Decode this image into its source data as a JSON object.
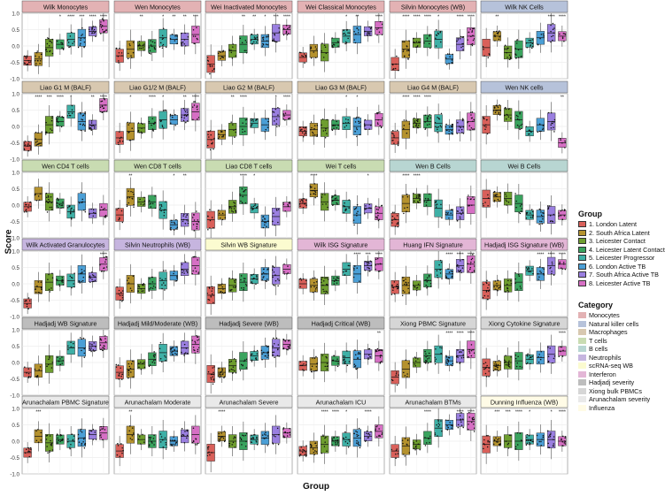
{
  "chart_data": {
    "type": "box",
    "xlabel": "Group",
    "ylabel": "Score",
    "ylim": [
      -1.0,
      1.0
    ],
    "yticks": [
      "-1.0",
      "-0.5",
      "0.0",
      "0.5",
      "1.0"
    ],
    "legend_group_title": "Group",
    "groups": [
      {
        "name": "1. London Latent",
        "color": "#d9605a"
      },
      {
        "name": "2. South Africa Latent",
        "color": "#b5922e"
      },
      {
        "name": "3. Leicester Contact",
        "color": "#6e9e2f"
      },
      {
        "name": "4. Leicester Latent Contact",
        "color": "#3aa35e"
      },
      {
        "name": "5. Leicester Progressor",
        "color": "#3fb0a6"
      },
      {
        "name": "6. London Active TB",
        "color": "#4b9fd6"
      },
      {
        "name": "7. South Africa Active TB",
        "color": "#9a7fe0"
      },
      {
        "name": "8. Leicester Active TB",
        "color": "#d66fc4"
      }
    ],
    "legend_category_title": "Category",
    "categories": [
      {
        "name": "Monocytes",
        "color": "#e3b2b4"
      },
      {
        "name": "Natural killer cells",
        "color": "#b6c2da"
      },
      {
        "name": "Macrophages",
        "color": "#d8c8b0"
      },
      {
        "name": "T cells",
        "color": "#c9dcb2"
      },
      {
        "name": "B cells",
        "color": "#b8d6d2"
      },
      {
        "name": "Neutrophils",
        "color": "#c6b5df"
      },
      {
        "name": "scRNA-seq WB",
        "color": "#fbfbd0"
      },
      {
        "name": "Interferon",
        "color": "#e3b6d6"
      },
      {
        "name": "Hadjadj severity",
        "color": "#bdbdbd"
      },
      {
        "name": "Xiong bulk PBMCs",
        "color": "#d6d6d6"
      },
      {
        "name": "Arunachalam severity",
        "color": "#e9e9e9"
      },
      {
        "name": "Influenza",
        "color": "#fffbe6"
      }
    ],
    "panels": [
      {
        "title": "Wilk Monocytes",
        "cat": 0,
        "medians": [
          -0.45,
          -0.4,
          -0.05,
          0.05,
          0.2,
          0.25,
          0.45,
          0.6
        ],
        "sig": [
          "",
          "",
          "",
          "*",
          "****",
          "***",
          "****",
          "****"
        ]
      },
      {
        "title": "Wen Monocytes",
        "cat": 0,
        "medians": [
          -0.3,
          -0.1,
          0.0,
          0.0,
          0.25,
          0.2,
          0.2,
          0.35
        ],
        "sig": [
          "",
          "",
          "**",
          "",
          "*",
          "**",
          "**",
          "***"
        ]
      },
      {
        "title": "Wei Inactivated Monocytes",
        "cat": 0,
        "medians": [
          -0.55,
          -0.3,
          -0.15,
          0.05,
          0.2,
          0.15,
          0.4,
          0.5
        ],
        "sig": [
          "",
          "",
          "",
          "**",
          "**",
          "*",
          "***",
          "****"
        ]
      },
      {
        "title": "Wei Classical Monocytes",
        "cat": 0,
        "medians": [
          -0.35,
          -0.15,
          -0.2,
          0.1,
          0.3,
          0.35,
          0.45,
          0.55
        ],
        "sig": [
          "",
          "",
          "",
          "",
          "*",
          "**",
          "",
          "****"
        ]
      },
      {
        "title": "Silvin Monocytes (WB)",
        "cat": 0,
        "medians": [
          -0.55,
          -0.1,
          0.1,
          0.15,
          0.2,
          -0.4,
          0.05,
          0.3
        ],
        "sig": [
          "",
          "****",
          "****",
          "****",
          "*",
          "",
          "****",
          "****"
        ]
      },
      {
        "title": "Wilk NK Cells",
        "cat": 1,
        "medians": [
          -0.05,
          0.3,
          -0.2,
          -0.1,
          0.1,
          0.25,
          0.4,
          0.3
        ],
        "sig": [
          "",
          "**",
          "",
          "",
          "",
          "",
          "****",
          "****"
        ]
      },
      {
        "title": "Liao G1 M (BALF)",
        "cat": 2,
        "medians": [
          -0.6,
          -0.4,
          0.05,
          0.15,
          0.45,
          0.15,
          0.05,
          0.65
        ],
        "sig": [
          "",
          "****",
          "***",
          "****",
          "*",
          "",
          "**",
          "****"
        ]
      },
      {
        "title": "Liao G1/2 M (BALF)",
        "cat": 2,
        "medians": [
          -0.35,
          -0.15,
          -0.05,
          0.1,
          0.2,
          0.2,
          0.35,
          0.45
        ],
        "sig": [
          "",
          "*",
          "",
          "****",
          "*",
          "",
          "**",
          "****"
        ]
      },
      {
        "title": "Liao G2 M (BALF)",
        "cat": 2,
        "medians": [
          -0.4,
          -0.25,
          -0.1,
          0.0,
          0.1,
          0.05,
          0.3,
          0.35
        ],
        "sig": [
          "",
          "",
          "**",
          "****",
          "",
          "",
          "*",
          "****"
        ]
      },
      {
        "title": "Liao G3 M (BALF)",
        "cat": 2,
        "medians": [
          -0.15,
          -0.1,
          -0.05,
          0.05,
          0.1,
          0.0,
          0.05,
          0.2
        ],
        "sig": [
          "",
          "",
          "",
          "",
          "*",
          "*",
          "",
          ""
        ]
      },
      {
        "title": "Liao G4 M (BALF)",
        "cat": 2,
        "medians": [
          -0.35,
          -0.1,
          0.1,
          0.15,
          0.1,
          -0.1,
          0.0,
          0.15
        ],
        "sig": [
          "",
          "****",
          "****",
          "****",
          "",
          "",
          "",
          ""
        ]
      },
      {
        "title": "Wen NK cells",
        "cat": 1,
        "medians": [
          0.05,
          0.5,
          0.35,
          0.2,
          -0.15,
          0.05,
          0.15,
          -0.5
        ],
        "sig": [
          "",
          "",
          "",
          "",
          "",
          "",
          "",
          "**"
        ]
      },
      {
        "title": "Wen CD4 T cells",
        "cat": 3,
        "medians": [
          -0.05,
          0.35,
          0.1,
          0.05,
          -0.2,
          0.1,
          -0.25,
          -0.15
        ],
        "sig": [
          "",
          "",
          "",
          "",
          "",
          "",
          "",
          ""
        ]
      },
      {
        "title": "Wen CD8 T cells",
        "cat": 3,
        "medians": [
          -0.3,
          0.25,
          0.1,
          0.1,
          -0.15,
          -0.6,
          -0.45,
          -0.5
        ],
        "sig": [
          "",
          "**",
          "",
          "",
          "",
          "*",
          "**",
          ""
        ]
      },
      {
        "title": "Liao CD8 T cells",
        "cat": 3,
        "medians": [
          -0.45,
          -0.3,
          -0.05,
          0.3,
          -0.1,
          -0.5,
          -0.35,
          -0.05
        ],
        "sig": [
          "",
          "",
          "",
          "****",
          "*",
          "",
          "",
          ""
        ]
      },
      {
        "title": "Wei T cells",
        "cat": 3,
        "medians": [
          0.05,
          0.45,
          0.1,
          0.15,
          -0.05,
          -0.3,
          -0.1,
          -0.25
        ],
        "sig": [
          "",
          "****",
          "",
          "",
          "",
          "",
          "*",
          ""
        ]
      },
      {
        "title": "Wen B Cells",
        "cat": 4,
        "medians": [
          -0.45,
          0.05,
          0.2,
          0.15,
          -0.1,
          -0.3,
          -0.25,
          0.0
        ],
        "sig": [
          "",
          "****",
          "****",
          "",
          "",
          "",
          "",
          ""
        ]
      },
      {
        "title": "Wei B Cells",
        "cat": 4,
        "medians": [
          0.2,
          0.25,
          0.2,
          0.05,
          -0.3,
          -0.35,
          -0.3,
          -0.3
        ],
        "sig": [
          "",
          "",
          "",
          "",
          "",
          "",
          "",
          ""
        ]
      },
      {
        "title": "Wilk Activated Granulocytes",
        "cat": 5,
        "medians": [
          -0.6,
          -0.1,
          0.05,
          0.1,
          0.1,
          0.3,
          0.2,
          0.6
        ],
        "sig": [
          "",
          "",
          "",
          "",
          "",
          "",
          "",
          "****"
        ]
      },
      {
        "title": "Silvin Neutrophils (WB)",
        "cat": 5,
        "medians": [
          -0.3,
          0.0,
          -0.15,
          0.0,
          0.1,
          0.25,
          0.45,
          0.55
        ],
        "sig": [
          "",
          "",
          "",
          "",
          "",
          "",
          "",
          ""
        ]
      },
      {
        "title": "Silvin WB Signature",
        "cat": 6,
        "medians": [
          -0.35,
          -0.15,
          -0.05,
          0.05,
          0.15,
          0.3,
          0.25,
          0.45
        ],
        "sig": [
          "",
          "",
          "",
          "",
          "",
          "",
          "",
          ""
        ]
      },
      {
        "title": "Wilk ISG Signature",
        "cat": 7,
        "medians": [
          0.0,
          -0.05,
          -0.05,
          0.1,
          0.45,
          0.3,
          0.55,
          0.6
        ],
        "sig": [
          "",
          "",
          "",
          "",
          "",
          "****",
          "***",
          "****"
        ]
      },
      {
        "title": "Huang IFN Signature",
        "cat": 7,
        "medians": [
          -0.1,
          -0.05,
          -0.05,
          0.1,
          0.45,
          0.3,
          0.55,
          0.6
        ],
        "sig": [
          "",
          "",
          "",
          "",
          "",
          "****",
          "****",
          "****"
        ]
      },
      {
        "title": "Hadjadj ISG Signature (WB)",
        "cat": 7,
        "medians": [
          -0.2,
          -0.05,
          -0.05,
          0.05,
          0.4,
          0.3,
          0.55,
          0.6
        ],
        "sig": [
          "",
          "",
          "",
          "",
          "",
          "****",
          "****",
          "****"
        ]
      },
      {
        "title": "Hadjadj WB Signature",
        "cat": 8,
        "medians": [
          -0.3,
          -0.25,
          -0.05,
          0.05,
          0.45,
          0.45,
          0.5,
          0.6
        ],
        "sig": [
          "",
          "",
          "",
          "",
          "",
          "",
          "",
          ""
        ]
      },
      {
        "title": "Hadjadj Mild/Moderate (WB)",
        "cat": 8,
        "medians": [
          -0.3,
          -0.2,
          -0.05,
          0.1,
          0.3,
          0.35,
          0.45,
          0.55
        ],
        "sig": [
          "",
          "",
          "",
          "",
          "",
          "",
          "",
          ""
        ]
      },
      {
        "title": "Hadjadj Severe (WB)",
        "cat": 8,
        "medians": [
          -0.35,
          -0.3,
          -0.1,
          0.05,
          0.2,
          0.3,
          0.45,
          0.55
        ],
        "sig": [
          "",
          "",
          "",
          "",
          "",
          "",
          "",
          ""
        ]
      },
      {
        "title": "Hadjadj Critical (WB)",
        "cat": 8,
        "medians": [
          -0.1,
          -0.05,
          0.0,
          0.05,
          0.15,
          0.1,
          0.25,
          0.2
        ],
        "sig": [
          "",
          "",
          "",
          "",
          "",
          "",
          "",
          "**"
        ]
      },
      {
        "title": "Xiong PBMC Signature",
        "cat": 9,
        "medians": [
          -0.45,
          -0.2,
          0.0,
          0.2,
          0.25,
          0.05,
          0.2,
          0.4
        ],
        "sig": [
          "",
          "",
          "",
          "",
          "",
          "****",
          "****",
          "****"
        ]
      },
      {
        "title": "Xiong Cytokine Signature",
        "cat": 9,
        "medians": [
          -0.15,
          -0.1,
          0.0,
          0.05,
          0.1,
          0.15,
          0.25,
          0.35
        ],
        "sig": [
          "",
          "",
          "",
          "",
          "",
          "",
          "",
          "****"
        ]
      },
      {
        "title": "Arunachalam PBMC Signature",
        "cat": 10,
        "medians": [
          -0.35,
          0.15,
          -0.05,
          0.05,
          0.0,
          0.1,
          0.2,
          0.25
        ],
        "sig": [
          "",
          "***",
          "",
          "",
          "",
          "",
          "",
          ""
        ]
      },
      {
        "title": "Arunachalam Moderate",
        "cat": 10,
        "medians": [
          -0.3,
          0.2,
          0.05,
          0.0,
          0.05,
          0.0,
          0.15,
          0.2
        ],
        "sig": [
          "",
          "**",
          "",
          "",
          "",
          "",
          "",
          ""
        ]
      },
      {
        "title": "Arunachalam Severe",
        "cat": 10,
        "medians": [
          -0.35,
          0.15,
          0.0,
          0.0,
          0.05,
          0.1,
          0.2,
          0.25
        ],
        "sig": [
          "",
          "****",
          "",
          "",
          "",
          "",
          "",
          ""
        ]
      },
      {
        "title": "Arunachalam ICU",
        "cat": 10,
        "medians": [
          -0.3,
          -0.2,
          -0.1,
          0.0,
          0.05,
          0.1,
          0.15,
          0.3
        ],
        "sig": [
          "",
          "",
          "****",
          "****",
          "*",
          "",
          "****",
          ""
        ]
      },
      {
        "title": "Arunachalam BTMs",
        "cat": 10,
        "medians": [
          -0.3,
          -0.15,
          -0.1,
          0.1,
          0.4,
          0.5,
          0.65,
          0.6
        ],
        "sig": [
          "",
          "",
          "",
          "****",
          "",
          "",
          "****",
          "****"
        ]
      },
      {
        "title": "Dunning Influenza (WB)",
        "cat": 11,
        "medians": [
          -0.1,
          0.0,
          0.0,
          0.0,
          0.05,
          0.05,
          0.05,
          0.0
        ],
        "sig": [
          "",
          "***",
          "***",
          "****",
          "*",
          "",
          "*",
          "****"
        ]
      }
    ]
  }
}
